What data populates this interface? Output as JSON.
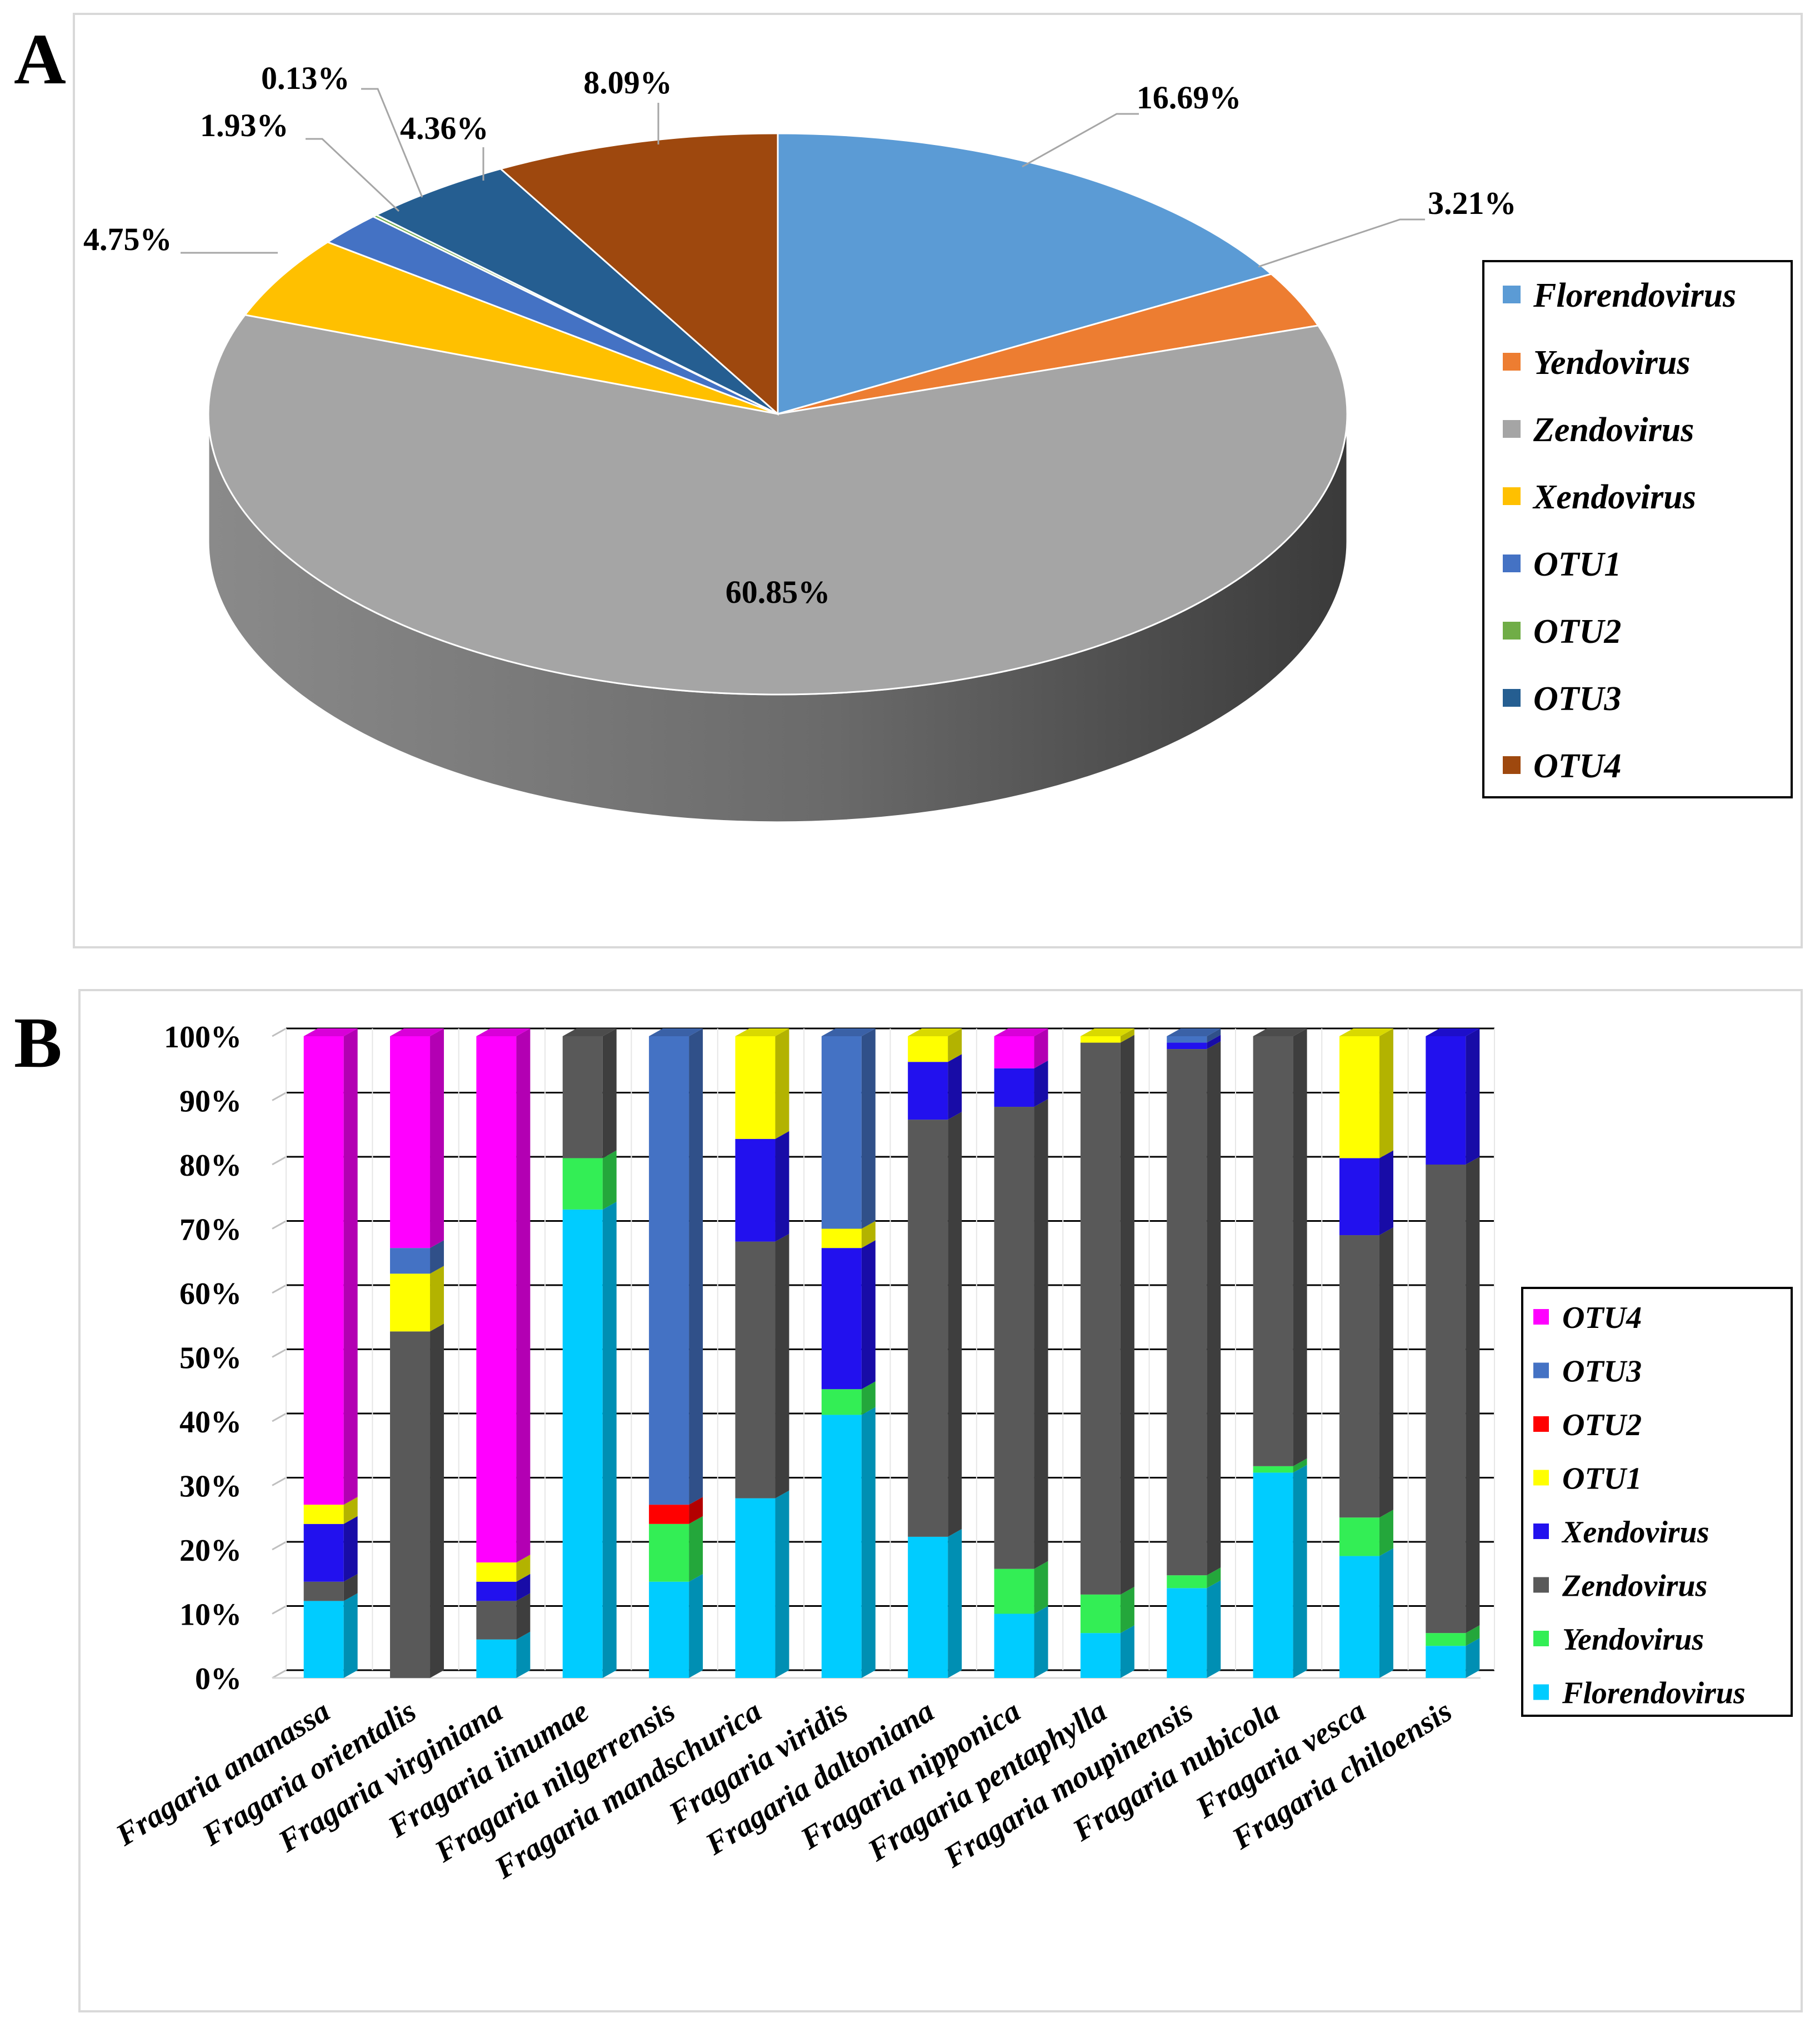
{
  "chart_data": [
    {
      "type": "pie",
      "panel_label": "A",
      "categories": [
        "Florendovirus",
        "Yendovirus",
        "Zendovirus",
        "Xendovirus",
        "OTU1",
        "OTU2",
        "OTU3",
        "OTU4"
      ],
      "values": [
        16.69,
        3.21,
        60.85,
        4.75,
        1.93,
        0.13,
        4.36,
        8.09
      ],
      "data_labels": [
        "16.69%",
        "3.21%",
        "60.85%",
        "4.75%",
        "1.93%",
        "0.13%",
        "4.36%",
        "8.09%"
      ],
      "colors": [
        "#5B9BD5",
        "#ED7D31",
        "#A5A5A5",
        "#FFC000",
        "#4472C4",
        "#70AD47",
        "#255E91",
        "#9E480E"
      ],
      "legend": {
        "position": "right",
        "entries": [
          "Florendovirus",
          "Yendovirus",
          "Zendovirus",
          "Xendovirus",
          "OTU1",
          "OTU2",
          "OTU3",
          "OTU4"
        ]
      },
      "three_d": true
    },
    {
      "type": "bar",
      "stacked": true,
      "percent_stacked": true,
      "panel_label": "B",
      "categories": [
        "Fragaria ananassa",
        "Fragaria orientalis",
        "Fragaria virginiana",
        "Fragaria iinumae",
        "Fragaria nilgerrensis",
        "Fragaria mandschurica",
        "Fragaria viridis",
        "Fragaria daltoniana",
        "Fragaria nipponica",
        "Fragaria pentaphylla",
        "Fragaria moupinensis",
        "Fragaria nubicola",
        "Fragaria vesca",
        "Fragaria chiloensis"
      ],
      "series": [
        {
          "name": "Florendovirus",
          "color": "#00CCFF",
          "values": [
            12,
            0,
            6,
            73,
            15,
            28,
            41,
            22,
            10,
            7,
            14,
            32,
            19,
            5
          ]
        },
        {
          "name": "Yendovirus",
          "color": "#33EE55",
          "values": [
            0,
            0,
            0,
            8,
            9,
            0,
            4,
            0,
            7,
            6,
            2,
            1,
            6,
            2
          ]
        },
        {
          "name": "Zendovirus",
          "color": "#595959",
          "values": [
            3,
            54,
            6,
            19,
            0,
            40,
            0,
            65,
            72,
            86,
            82,
            67,
            44,
            73
          ]
        },
        {
          "name": "Xendovirus",
          "color": "#2211EE",
          "values": [
            9,
            0,
            3,
            0,
            0,
            16,
            22,
            9,
            6,
            0,
            1,
            0,
            12,
            20
          ]
        },
        {
          "name": "OTU1",
          "color": "#FFFF00",
          "values": [
            3,
            9,
            3,
            0,
            0,
            16,
            3,
            4,
            0,
            1,
            0,
            0,
            19,
            0
          ]
        },
        {
          "name": "OTU2",
          "color": "#FF0000",
          "values": [
            0,
            0,
            0,
            0,
            3,
            0,
            0,
            0,
            0,
            0,
            0,
            0,
            0,
            0
          ]
        },
        {
          "name": "OTU3",
          "color": "#4472C4",
          "values": [
            0,
            4,
            0,
            0,
            73,
            0,
            30,
            0,
            0,
            0,
            1,
            0,
            0,
            0
          ]
        },
        {
          "name": "OTU4",
          "color": "#FF00FF",
          "values": [
            73,
            33,
            82,
            0,
            0,
            0,
            0,
            0,
            5,
            0,
            0,
            0,
            0,
            0
          ]
        }
      ],
      "y_ticks": [
        "0%",
        "10%",
        "20%",
        "30%",
        "40%",
        "50%",
        "60%",
        "70%",
        "80%",
        "90%",
        "100%"
      ],
      "ylim": [
        0,
        100
      ],
      "grid": true,
      "legend": {
        "position": "right",
        "order": [
          "OTU4",
          "OTU3",
          "OTU2",
          "OTU1",
          "Xendovirus",
          "Zendovirus",
          "Yendovirus",
          "Florendovirus"
        ]
      },
      "three_d": true
    }
  ]
}
